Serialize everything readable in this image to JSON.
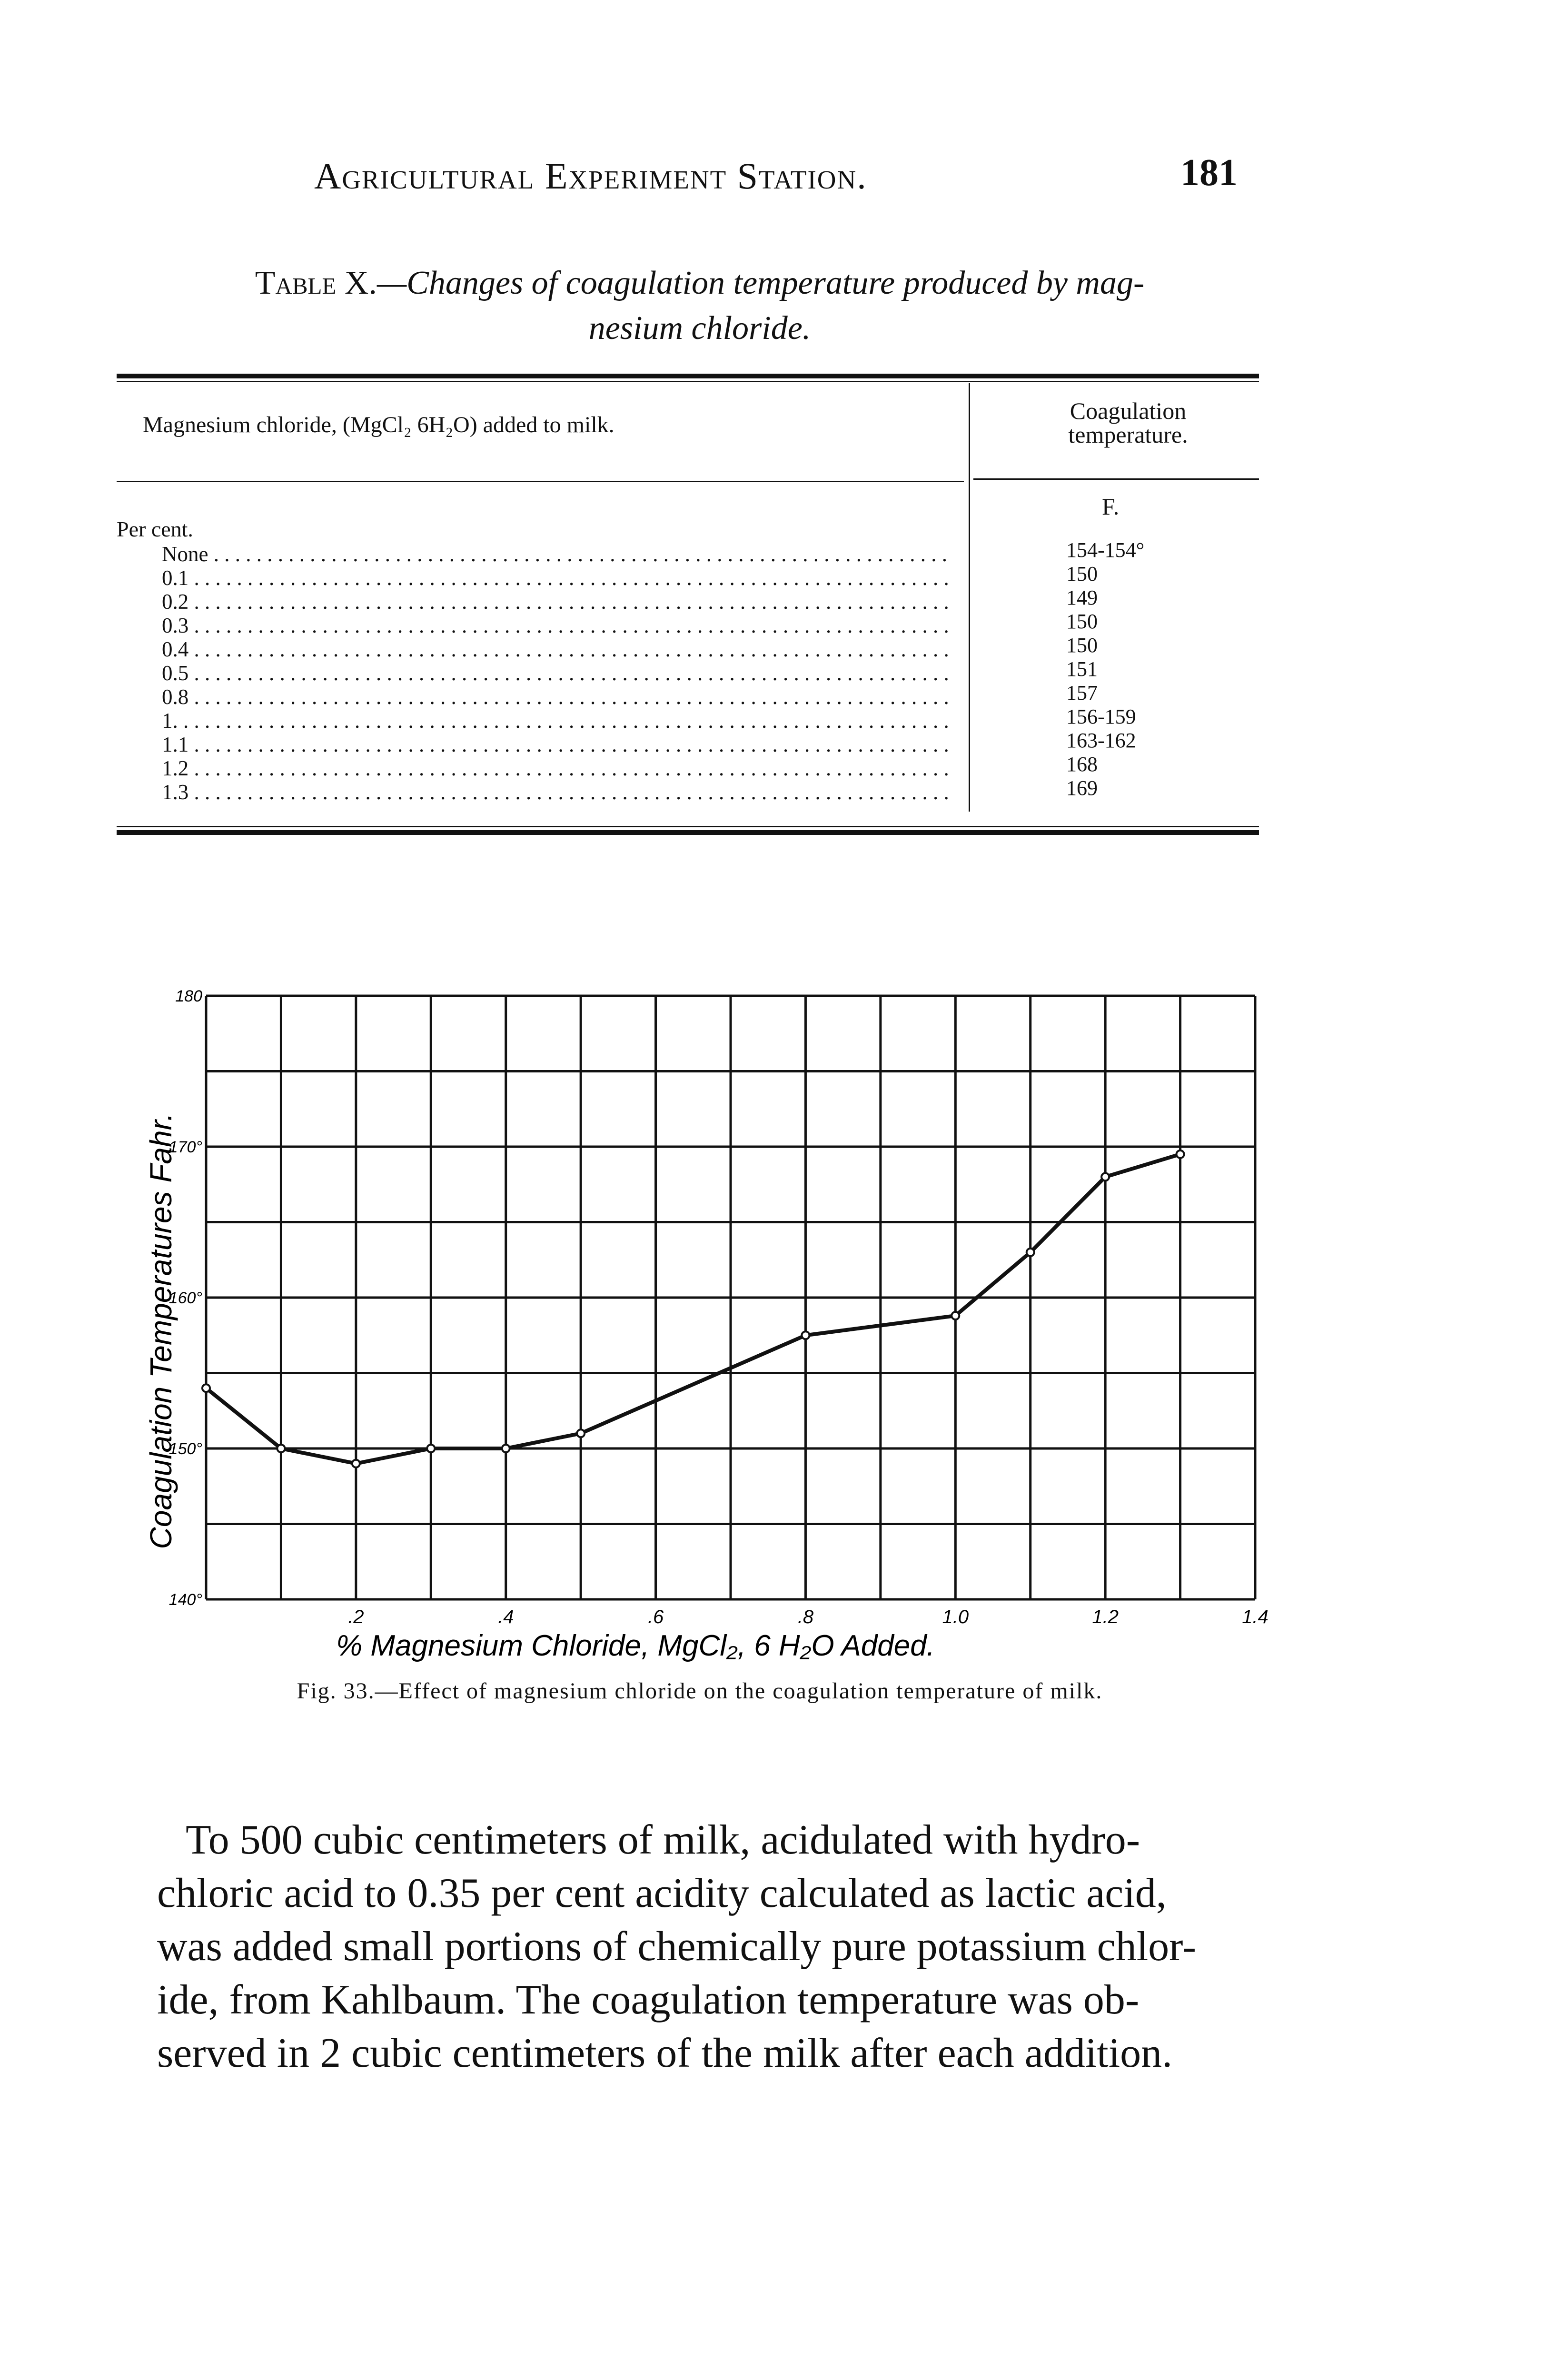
{
  "header": {
    "running_head": "Agricultural Experiment Station.",
    "page_number": "181"
  },
  "table": {
    "caption_lead": "Table X.",
    "caption_line1": "—Changes of coagulation temperature produced by mag-",
    "caption_line2": "nesium chloride.",
    "col1_header": "Magnesium chloride, (MgCl₂ 6H₂O) added to milk.",
    "col2_header_line1": "Coagulation",
    "col2_header_line2": "temperature.",
    "col1_unit": "Per cent.",
    "col2_unit": "F.",
    "rows": [
      {
        "label": "None",
        "value": "154-154°"
      },
      {
        "label": "0.1",
        "value": "150"
      },
      {
        "label": "0.2",
        "value": "149"
      },
      {
        "label": "0.3",
        "value": "150"
      },
      {
        "label": "0.4",
        "value": "150"
      },
      {
        "label": "0.5",
        "value": "151"
      },
      {
        "label": "0.8",
        "value": "157"
      },
      {
        "label": "1.",
        "value": "156-159"
      },
      {
        "label": "1.1",
        "value": "163-162"
      },
      {
        "label": "1.2",
        "value": "168"
      },
      {
        "label": "1.3",
        "value": "169"
      }
    ]
  },
  "chart_data": {
    "type": "line",
    "xlabel": "% Magnesium Chloride, MgCl₂, 6 H₂O Added.",
    "ylabel": "Coagulation Temperatures Fahr.",
    "xlim": [
      0,
      1.4
    ],
    "ylim": [
      140,
      180
    ],
    "grid": true,
    "x_ticks": [
      ".2",
      ".4",
      ".6",
      ".8",
      "1.0",
      "1.2",
      "1.4"
    ],
    "y_ticks": [
      "140°",
      "150°",
      "160°",
      "170°",
      "180"
    ],
    "x": [
      0,
      0.1,
      0.2,
      0.3,
      0.4,
      0.5,
      0.8,
      1.0,
      1.1,
      1.2,
      1.3
    ],
    "y": [
      154,
      150,
      149,
      150,
      150,
      151,
      157.5,
      158.8,
      163,
      168,
      169.5
    ]
  },
  "figure": {
    "caption": "Fig. 33.—Effect of magnesium chloride on the coagulation temperature of milk."
  },
  "paragraph": {
    "lines": [
      "To 500 cubic centimeters of milk, acidulated with hydro-",
      "chloric acid to 0.35 per cent acidity calculated as lactic acid,",
      "was added small portions of chemically pure potassium chlor-",
      "ide, from Kahlbaum.  The coagulation temperature was ob-",
      "served in 2 cubic centimeters of the milk after each addition."
    ]
  }
}
